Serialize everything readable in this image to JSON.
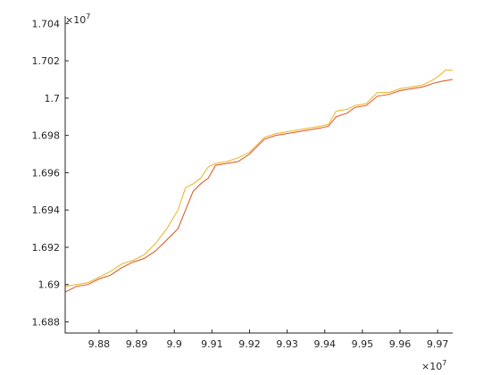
{
  "chart_data": {
    "type": "line",
    "title": "",
    "xlabel": "",
    "ylabel": "",
    "x_exponent_label": {
      "base": "×10",
      "exp": "7"
    },
    "y_exponent_label": {
      "base": "×10",
      "exp": "7"
    },
    "xlim": [
      9.871,
      9.974
    ],
    "ylim": [
      1.6874,
      1.7044
    ],
    "x_ticks": [
      9.88,
      9.89,
      9.9,
      9.91,
      9.92,
      9.93,
      9.94,
      9.95,
      9.96,
      9.97
    ],
    "x_tick_labels": [
      "9.88",
      "9.89",
      "9.9",
      "9.91",
      "9.92",
      "9.93",
      "9.94",
      "9.95",
      "9.96",
      "9.97"
    ],
    "y_ticks": [
      1.688,
      1.69,
      1.692,
      1.694,
      1.696,
      1.698,
      1.7,
      1.702,
      1.704
    ],
    "y_tick_labels": [
      "1.688",
      "1.69",
      "1.692",
      "1.694",
      "1.696",
      "1.698",
      "1.7",
      "1.702",
      "1.704"
    ],
    "grid": false,
    "legend": "none",
    "series": [
      {
        "color": "#EDB120",
        "points": [
          [
            9.871,
            1.6899
          ],
          [
            9.874,
            1.69
          ],
          [
            9.877,
            1.6901
          ],
          [
            9.88,
            1.6904
          ],
          [
            9.883,
            1.6907
          ],
          [
            9.886,
            1.6911
          ],
          [
            9.889,
            1.6913
          ],
          [
            9.892,
            1.6916
          ],
          [
            9.895,
            1.6922
          ],
          [
            9.898,
            1.693
          ],
          [
            9.901,
            1.694
          ],
          [
            9.903,
            1.6952
          ],
          [
            9.905,
            1.6954
          ],
          [
            9.907,
            1.6957
          ],
          [
            9.909,
            1.6963
          ],
          [
            9.911,
            1.6965
          ],
          [
            9.914,
            1.6966
          ],
          [
            9.917,
            1.6968
          ],
          [
            9.92,
            1.6971
          ],
          [
            9.922,
            1.6975
          ],
          [
            9.924,
            1.6979
          ],
          [
            9.927,
            1.6981
          ],
          [
            9.93,
            1.6982
          ],
          [
            9.933,
            1.6983
          ],
          [
            9.936,
            1.6984
          ],
          [
            9.939,
            1.6985
          ],
          [
            9.941,
            1.6986
          ],
          [
            9.943,
            1.6993
          ],
          [
            9.946,
            1.6994
          ],
          [
            9.948,
            1.6996
          ],
          [
            9.951,
            1.6997
          ],
          [
            9.954,
            1.7003
          ],
          [
            9.957,
            1.7003
          ],
          [
            9.96,
            1.7005
          ],
          [
            9.963,
            1.7006
          ],
          [
            9.966,
            1.7007
          ],
          [
            9.969,
            1.701
          ],
          [
            9.971,
            1.7013
          ],
          [
            9.972,
            1.7015
          ],
          [
            9.974,
            1.7015
          ]
        ]
      },
      {
        "color": "#D95319",
        "points": [
          [
            9.871,
            1.6896
          ],
          [
            9.874,
            1.6899
          ],
          [
            9.877,
            1.69
          ],
          [
            9.88,
            1.6903
          ],
          [
            9.883,
            1.6905
          ],
          [
            9.886,
            1.6909
          ],
          [
            9.889,
            1.6912
          ],
          [
            9.892,
            1.6914
          ],
          [
            9.895,
            1.6918
          ],
          [
            9.898,
            1.6924
          ],
          [
            9.901,
            1.693
          ],
          [
            9.903,
            1.694
          ],
          [
            9.905,
            1.695
          ],
          [
            9.907,
            1.6954
          ],
          [
            9.909,
            1.6957
          ],
          [
            9.911,
            1.6964
          ],
          [
            9.914,
            1.6965
          ],
          [
            9.917,
            1.6966
          ],
          [
            9.92,
            1.697
          ],
          [
            9.922,
            1.6974
          ],
          [
            9.924,
            1.6978
          ],
          [
            9.927,
            1.698
          ],
          [
            9.93,
            1.6981
          ],
          [
            9.933,
            1.6982
          ],
          [
            9.936,
            1.6983
          ],
          [
            9.939,
            1.6984
          ],
          [
            9.941,
            1.6985
          ],
          [
            9.943,
            1.699
          ],
          [
            9.946,
            1.6992
          ],
          [
            9.948,
            1.6995
          ],
          [
            9.951,
            1.6996
          ],
          [
            9.954,
            1.7001
          ],
          [
            9.957,
            1.7002
          ],
          [
            9.96,
            1.7004
          ],
          [
            9.963,
            1.7005
          ],
          [
            9.966,
            1.7006
          ],
          [
            9.969,
            1.7008
          ],
          [
            9.971,
            1.7009
          ],
          [
            9.974,
            1.701
          ]
        ]
      }
    ]
  }
}
